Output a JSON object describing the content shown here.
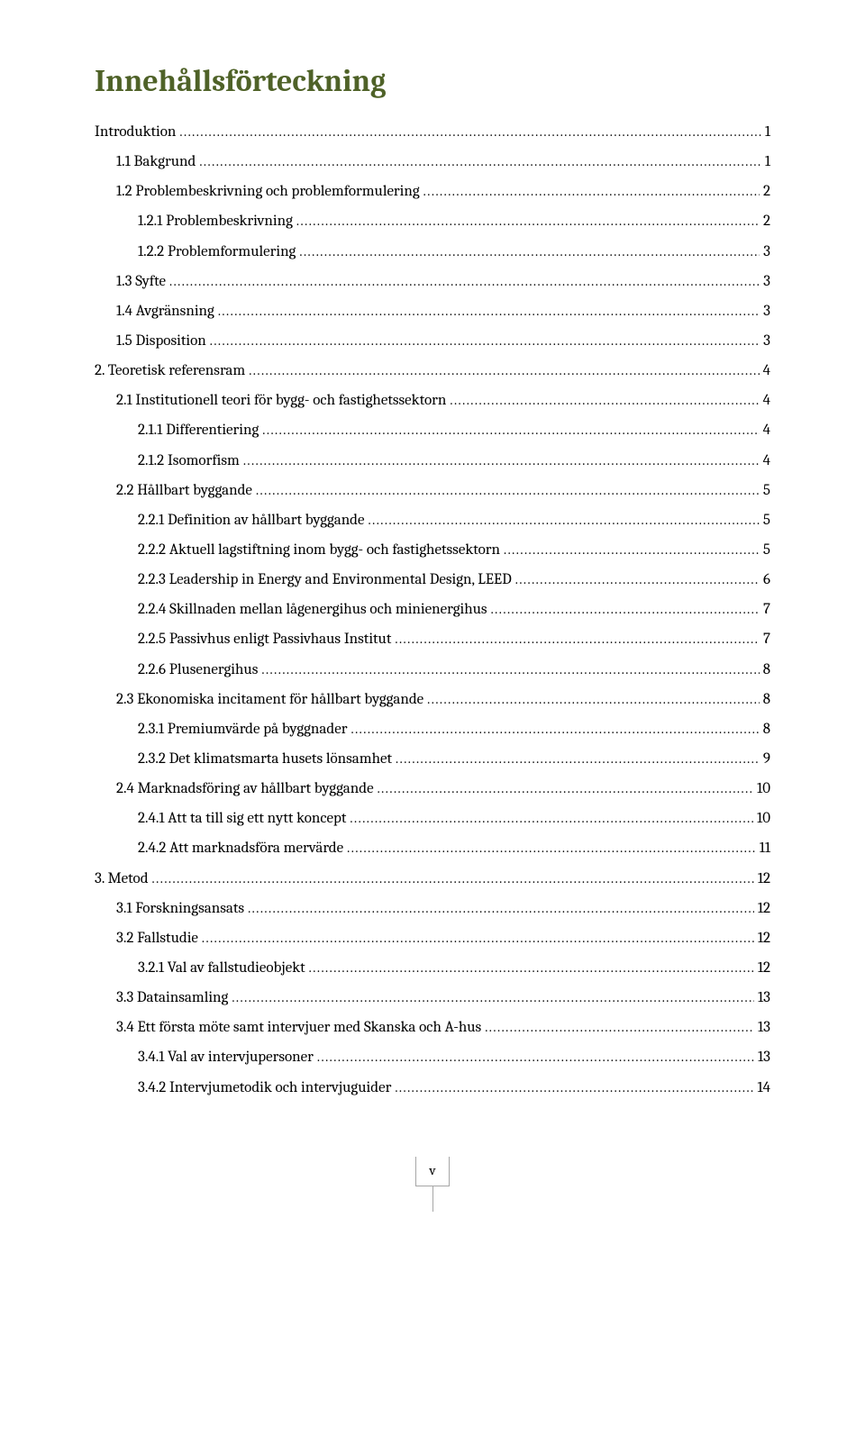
{
  "title": "Innehållsförteckning",
  "footer_roman": "v",
  "colors": {
    "heading": "#4f6228",
    "text": "#000000",
    "box_border": "#a6a6a6",
    "background": "#ffffff"
  },
  "toc": [
    {
      "level": 0,
      "label": "Introduktion",
      "page": "1"
    },
    {
      "level": 1,
      "label": "1.1 Bakgrund",
      "page": "1"
    },
    {
      "level": 1,
      "label": "1.2 Problembeskrivning och problemformulering",
      "page": "2"
    },
    {
      "level": 2,
      "label": "1.2.1 Problembeskrivning",
      "page": "2"
    },
    {
      "level": 2,
      "label": "1.2.2 Problemformulering",
      "page": "3"
    },
    {
      "level": 1,
      "label": "1.3 Syfte",
      "page": "3"
    },
    {
      "level": 1,
      "label": "1.4 Avgränsning",
      "page": "3"
    },
    {
      "level": 1,
      "label": "1.5 Disposition",
      "page": "3"
    },
    {
      "level": 0,
      "label": "2. Teoretisk referensram",
      "page": "4"
    },
    {
      "level": 1,
      "label": "2.1 Institutionell teori för bygg- och fastighetssektorn",
      "page": "4"
    },
    {
      "level": 2,
      "label": "2.1.1 Differentiering",
      "page": "4"
    },
    {
      "level": 2,
      "label": "2.1.2 Isomorfism",
      "page": "4"
    },
    {
      "level": 1,
      "label": "2.2 Hållbart byggande",
      "page": "5"
    },
    {
      "level": 2,
      "label": "2.2.1 Definition av hållbart byggande",
      "page": "5"
    },
    {
      "level": 2,
      "label": "2.2.2 Aktuell lagstiftning inom bygg- och fastighetssektorn",
      "page": "5"
    },
    {
      "level": 2,
      "label": "2.2.3 Leadership in Energy and Environmental Design, LEED",
      "page": "6"
    },
    {
      "level": 2,
      "label": "2.2.4 Skillnaden mellan lågenergihus och minienergihus",
      "page": "7"
    },
    {
      "level": 2,
      "label": "2.2.5 Passivhus enligt Passivhaus Institut",
      "page": "7"
    },
    {
      "level": 2,
      "label": "2.2.6 Plusenergihus",
      "page": "8"
    },
    {
      "level": 1,
      "label": "2.3 Ekonomiska incitament för hållbart byggande",
      "page": "8"
    },
    {
      "level": 2,
      "label": "2.3.1 Premiumvärde på byggnader",
      "page": "8"
    },
    {
      "level": 2,
      "label": "2.3.2 Det klimatsmarta husets lönsamhet",
      "page": "9"
    },
    {
      "level": 1,
      "label": "2.4 Marknadsföring av hållbart byggande",
      "page": "10"
    },
    {
      "level": 2,
      "label": "2.4.1 Att ta till sig ett nytt koncept",
      "page": "10"
    },
    {
      "level": 2,
      "label": "2.4.2 Att marknadsföra mervärde",
      "page": "11"
    },
    {
      "level": 0,
      "label": "3. Metod",
      "page": "12"
    },
    {
      "level": 1,
      "label": "3.1 Forskningsansats",
      "page": "12"
    },
    {
      "level": 1,
      "label": "3.2 Fallstudie",
      "page": "12"
    },
    {
      "level": 2,
      "label": "3.2.1 Val av fallstudieobjekt",
      "page": "12"
    },
    {
      "level": 1,
      "label": "3.3 Datainsamling",
      "page": "13"
    },
    {
      "level": 1,
      "label": "3.4 Ett första möte samt intervjuer med Skanska och A-hus",
      "page": "13"
    },
    {
      "level": 2,
      "label": "3.4.1 Val av intervjupersoner",
      "page": "13"
    },
    {
      "level": 2,
      "label": "3.4.2 Intervjumetodik och intervjuguider",
      "page": "14"
    }
  ]
}
